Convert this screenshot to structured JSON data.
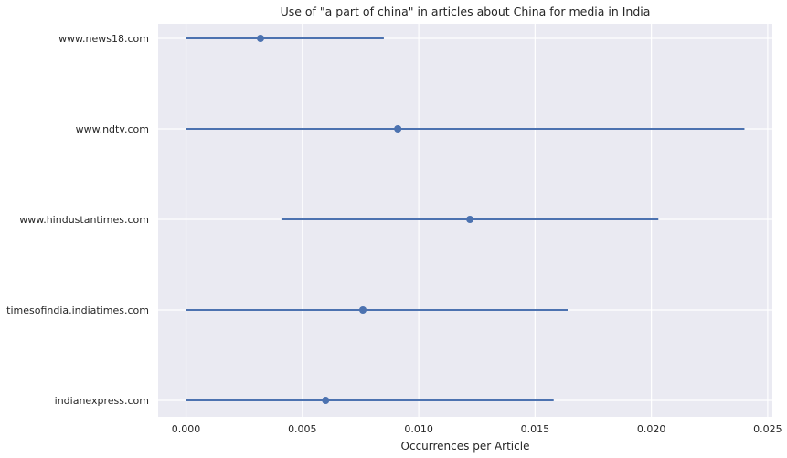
{
  "chart_data": {
    "type": "point-errorbar",
    "title": "Use of \"a part of china\" in articles about China for media in India",
    "xlabel": "Occurrences per Article",
    "ylabel": "",
    "xlim": [
      -0.0012,
      0.0252
    ],
    "x_ticks": [
      "0.000",
      "0.005",
      "0.010",
      "0.015",
      "0.020",
      "0.025"
    ],
    "x_tick_values": [
      0,
      0.005,
      0.01,
      0.015,
      0.02,
      0.025
    ],
    "grid": true,
    "legend": "none",
    "categories": [
      "www.news18.com",
      "www.ndtv.com",
      "www.hindustantimes.com",
      "timesofindia.indiatimes.com",
      "indianexpress.com"
    ],
    "values": [
      0.0032,
      0.0091,
      0.0122,
      0.0076,
      0.006
    ],
    "ci_low": [
      0.0,
      0.0,
      0.0041,
      0.0,
      0.0
    ],
    "ci_high": [
      0.0085,
      0.024,
      0.0203,
      0.0164,
      0.0158
    ],
    "colors": {
      "series": "#4c72b0",
      "plot_background": "#eaeaf2",
      "grid": "#ffffff",
      "text": "#262626"
    }
  }
}
